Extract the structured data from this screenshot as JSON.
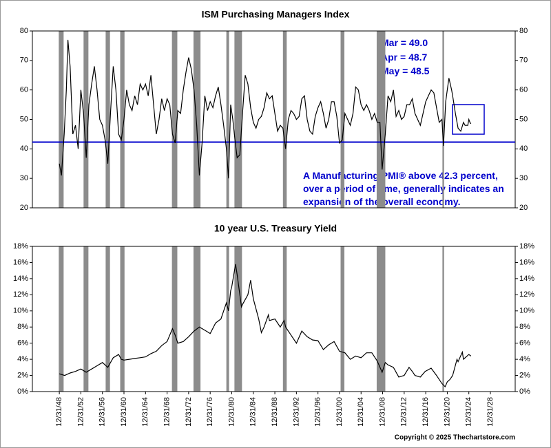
{
  "chart_data": [
    {
      "type": "line",
      "title": "ISM Purchasing Managers Index",
      "x": [
        1949.0,
        1949.4,
        1949.9,
        1950.3,
        1950.6,
        1951.0,
        1951.5,
        1952.0,
        1952.5,
        1953.0,
        1953.5,
        1954.0,
        1954.5,
        1955.0,
        1955.5,
        1956.0,
        1956.5,
        1957.0,
        1957.5,
        1958.0,
        1958.5,
        1959.0,
        1959.5,
        1960.0,
        1960.5,
        1961.0,
        1961.5,
        1962.0,
        1962.5,
        1963.0,
        1963.5,
        1964.0,
        1964.5,
        1965.0,
        1965.5,
        1966.0,
        1966.5,
        1967.0,
        1967.5,
        1968.0,
        1968.5,
        1969.0,
        1969.5,
        1970.0,
        1970.5,
        1971.0,
        1971.5,
        1972.0,
        1972.5,
        1973.0,
        1973.5,
        1974.0,
        1974.5,
        1975.0,
        1975.5,
        1976.0,
        1976.5,
        1977.0,
        1977.5,
        1978.0,
        1978.5,
        1979.0,
        1979.5,
        1980.0,
        1980.4,
        1980.8,
        1981.2,
        1981.6,
        1982.0,
        1982.5,
        1983.0,
        1983.5,
        1984.0,
        1984.5,
        1985.0,
        1985.5,
        1986.0,
        1986.5,
        1987.0,
        1987.5,
        1988.0,
        1988.5,
        1989.0,
        1989.5,
        1990.0,
        1990.5,
        1991.0,
        1991.5,
        1992.0,
        1992.5,
        1993.0,
        1993.5,
        1994.0,
        1994.5,
        1995.0,
        1995.5,
        1996.0,
        1996.5,
        1997.0,
        1997.5,
        1998.0,
        1998.5,
        1999.0,
        1999.5,
        2000.0,
        2000.5,
        2001.0,
        2001.5,
        2002.0,
        2002.5,
        2003.0,
        2003.5,
        2004.0,
        2004.5,
        2005.0,
        2005.5,
        2006.0,
        2006.5,
        2007.0,
        2007.5,
        2008.0,
        2008.5,
        2008.9,
        2009.5,
        2010.0,
        2010.5,
        2011.0,
        2011.5,
        2012.0,
        2012.5,
        2013.0,
        2013.5,
        2014.0,
        2014.5,
        2015.0,
        2015.5,
        2016.0,
        2016.5,
        2017.0,
        2017.5,
        2018.0,
        2018.5,
        2019.0,
        2019.5,
        2020.0,
        2020.3,
        2020.7,
        2021.0,
        2021.3,
        2021.8,
        2022.0,
        2022.5,
        2023.0,
        2023.5,
        2024.0,
        2024.3,
        2024.8,
        2025.0,
        2025.2,
        2025.3,
        2025.4
      ],
      "series": [
        {
          "color": "#000000",
          "values": [
            35,
            31,
            45,
            60,
            77,
            68,
            45,
            48,
            40,
            60,
            52,
            37,
            55,
            62,
            68,
            60,
            50,
            48,
            43,
            35,
            52,
            68,
            60,
            45,
            43,
            50,
            60,
            55,
            53,
            58,
            55,
            62,
            60,
            62,
            58,
            65,
            55,
            45,
            50,
            57,
            53,
            57,
            55,
            45,
            42,
            53,
            52,
            60,
            66,
            71,
            67,
            60,
            48,
            31,
            42,
            58,
            53,
            56,
            54,
            58,
            61,
            55,
            48,
            40,
            30,
            55,
            50,
            43,
            37,
            38,
            52,
            65,
            62,
            54,
            49,
            47,
            50,
            51,
            54,
            59,
            57,
            58,
            52,
            46,
            48,
            47,
            40,
            50,
            53,
            52,
            50,
            51,
            57,
            58,
            50,
            46,
            45,
            51,
            54,
            56,
            52,
            47,
            50,
            56,
            56,
            51,
            42,
            43,
            52,
            50,
            48,
            52,
            61,
            60,
            55,
            53,
            55,
            53,
            50,
            52,
            49,
            49,
            33,
            45,
            58,
            56,
            60,
            51,
            53,
            50,
            51,
            55,
            55,
            57,
            52,
            50,
            48,
            52,
            56,
            58,
            60,
            59,
            54,
            49,
            50,
            41,
            56,
            60,
            64,
            60,
            58,
            52,
            47,
            46,
            49,
            48,
            48,
            50,
            49.0,
            48.7,
            48.5
          ]
        }
      ],
      "xlim": [
        1944,
        2033.6
      ],
      "ylim": [
        20,
        80
      ],
      "yticks": [
        20,
        30,
        40,
        50,
        60,
        70,
        80
      ],
      "reference_line": 42.3,
      "reference_color": "#0000cc",
      "shaded_periods": [
        [
          1948.9,
          1949.8
        ],
        [
          1953.5,
          1954.4
        ],
        [
          1957.6,
          1958.4
        ],
        [
          1960.3,
          1961.1
        ],
        [
          1969.9,
          1970.9
        ],
        [
          1973.9,
          1975.2
        ],
        [
          1980.0,
          1980.5
        ],
        [
          1981.5,
          1982.9
        ],
        [
          1990.5,
          1991.2
        ],
        [
          2001.2,
          2001.9
        ],
        [
          2007.9,
          2009.5
        ],
        [
          2020.1,
          2020.4
        ]
      ],
      "shade_color": "#8c8c8c",
      "annotations": [
        "Mar = 49.0",
        "Apr = 48.7",
        "May = 48.5",
        "A Manufacturing PMI® above 42.3 percent,",
        "over a period of time, generally indicates an",
        "expansion of the overall economy."
      ]
    },
    {
      "type": "line",
      "title": "10 year U.S. Treasury Yield",
      "x": [
        1949,
        1950,
        1951,
        1952,
        1953,
        1954,
        1955,
        1956,
        1957,
        1958,
        1959,
        1960,
        1960.5,
        1961,
        1962,
        1963,
        1964,
        1965,
        1966,
        1967,
        1968,
        1969,
        1970,
        1970.5,
        1971,
        1972,
        1973,
        1974,
        1975,
        1976,
        1977,
        1978,
        1979,
        1980,
        1980.4,
        1980.8,
        1981,
        1981.7,
        1982,
        1982.8,
        1983,
        1984,
        1984.5,
        1985,
        1986,
        1986.5,
        1987,
        1987.8,
        1988,
        1989,
        1990,
        1990.7,
        1991,
        1992,
        1993,
        1994,
        1995,
        1996,
        1997,
        1998,
        1999,
        2000,
        2001,
        2002,
        2003,
        2004,
        2005,
        2006,
        2007,
        2008,
        2008.9,
        2009.5,
        2010,
        2011,
        2012,
        2013,
        2013.9,
        2014.5,
        2015,
        2016,
        2016.9,
        2018,
        2019,
        2020,
        2020.6,
        2021,
        2021.5,
        2022,
        2022.8,
        2023,
        2023.8,
        2024,
        2024.5,
        2025,
        2025.4
      ],
      "series": [
        {
          "color": "#000000",
          "values": [
            2.2,
            2.0,
            2.3,
            2.5,
            2.8,
            2.4,
            2.8,
            3.2,
            3.6,
            3.0,
            4.2,
            4.6,
            4.0,
            3.9,
            4.0,
            4.1,
            4.2,
            4.3,
            4.7,
            5.0,
            5.7,
            6.2,
            7.8,
            7.0,
            6.0,
            6.2,
            6.8,
            7.5,
            8.0,
            7.6,
            7.2,
            8.5,
            9.0,
            11.0,
            10.0,
            12.5,
            13.0,
            15.8,
            14.5,
            10.5,
            10.8,
            12.0,
            13.8,
            11.5,
            9.0,
            7.3,
            8.0,
            9.5,
            8.8,
            9.0,
            8.0,
            8.8,
            8.0,
            7.0,
            6.0,
            7.5,
            6.8,
            6.4,
            6.3,
            5.2,
            5.8,
            6.2,
            5.0,
            4.8,
            4.0,
            4.4,
            4.2,
            4.8,
            4.8,
            3.8,
            2.4,
            3.6,
            3.3,
            3.0,
            1.8,
            2.0,
            3.0,
            2.5,
            2.0,
            1.8,
            2.5,
            2.9,
            2.0,
            1.0,
            0.6,
            1.2,
            1.5,
            2.0,
            4.0,
            3.7,
            4.9,
            4.0,
            4.3,
            4.6,
            4.4
          ]
        }
      ],
      "xlim": [
        1944,
        2033.6
      ],
      "ylim": [
        0,
        18
      ],
      "yticks": [
        {
          "value": 0,
          "label": "0%"
        },
        {
          "value": 2,
          "label": "2%"
        },
        {
          "value": 4,
          "label": "4%"
        },
        {
          "value": 6,
          "label": "6%"
        },
        {
          "value": 8,
          "label": "8%"
        },
        {
          "value": 10,
          "label": "10%"
        },
        {
          "value": 12,
          "label": "12%"
        },
        {
          "value": 14,
          "label": "14%"
        },
        {
          "value": 16,
          "label": "16%"
        },
        {
          "value": 18,
          "label": "18%"
        }
      ],
      "xticks": [
        {
          "value": 1949,
          "label": "12/31/48"
        },
        {
          "value": 1953,
          "label": "12/31/52"
        },
        {
          "value": 1957,
          "label": "12/31/56"
        },
        {
          "value": 1961,
          "label": "12/31/60"
        },
        {
          "value": 1965,
          "label": "12/31/64"
        },
        {
          "value": 1969,
          "label": "12/31/68"
        },
        {
          "value": 1973,
          "label": "12/31/72"
        },
        {
          "value": 1977,
          "label": "12/31/76"
        },
        {
          "value": 1981,
          "label": "12/31/80"
        },
        {
          "value": 1985,
          "label": "12/31/84"
        },
        {
          "value": 1989,
          "label": "12/31/88"
        },
        {
          "value": 1993,
          "label": "12/31/92"
        },
        {
          "value": 1997,
          "label": "12/31/96"
        },
        {
          "value": 2001,
          "label": "12/31/00"
        },
        {
          "value": 2005,
          "label": "12/31/04"
        },
        {
          "value": 2009,
          "label": "12/31/08"
        },
        {
          "value": 2013,
          "label": "12/31/12"
        },
        {
          "value": 2017,
          "label": "12/31/16"
        },
        {
          "value": 2021,
          "label": "12/31/20"
        },
        {
          "value": 2025,
          "label": "12/31/24"
        },
        {
          "value": 2029,
          "label": "12/31/28"
        }
      ]
    }
  ],
  "footer": "Copyright © 2025 Thechartstore.com"
}
